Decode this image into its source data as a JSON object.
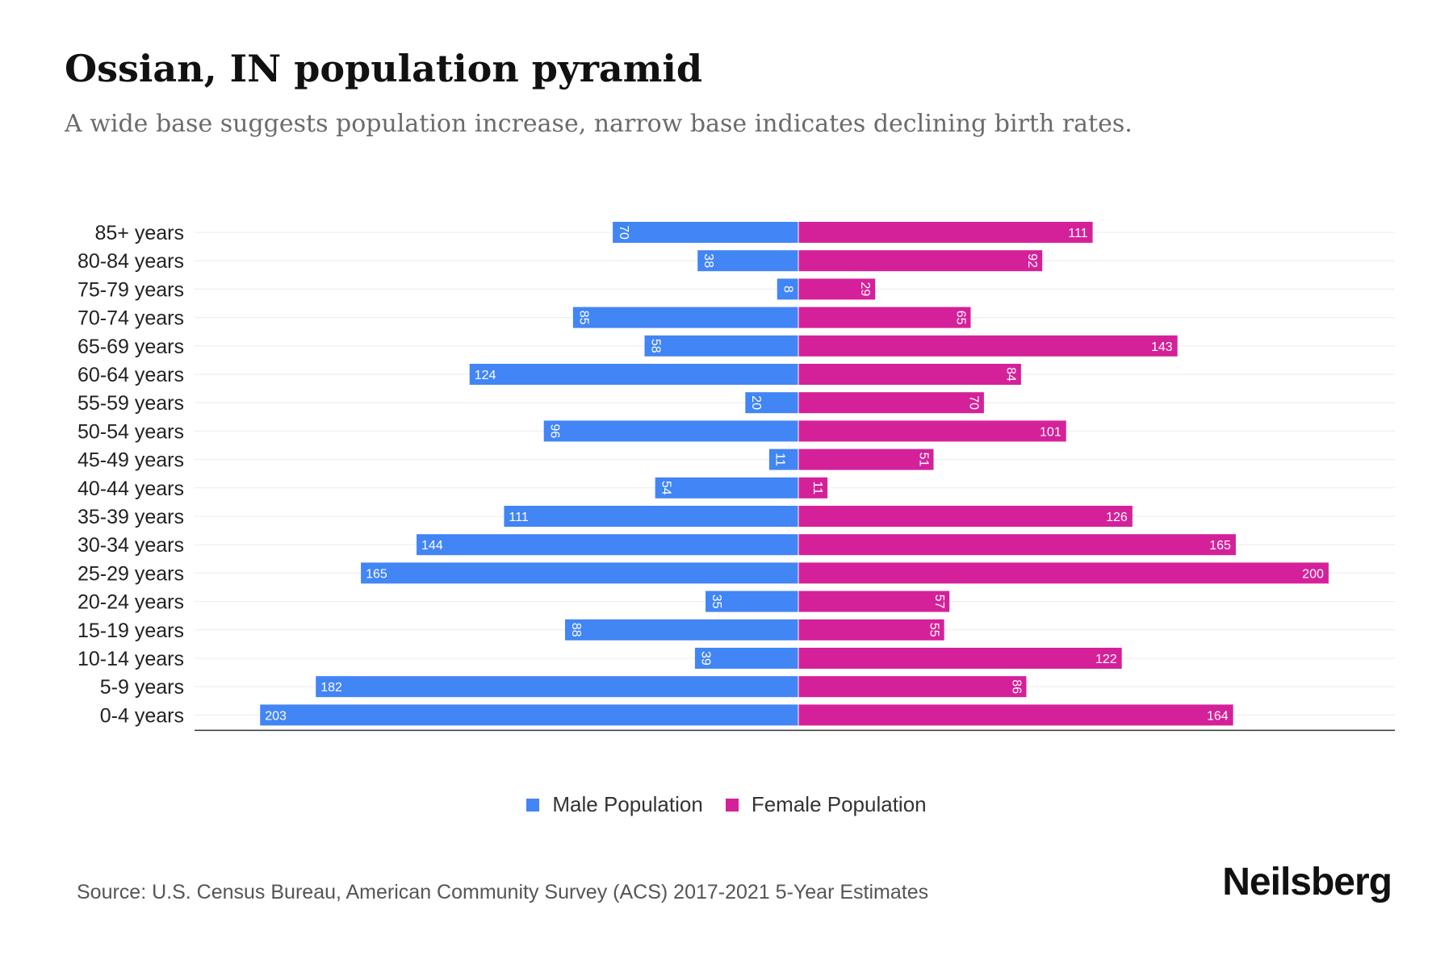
{
  "header": {
    "title": "Ossian, IN population pyramid",
    "subtitle": "A wide base suggests population increase, narrow base indicates declining birth rates."
  },
  "chart_data": {
    "type": "bar",
    "orientation": "horizontal-pyramid",
    "categories": [
      "85+ years",
      "80-84 years",
      "75-79 years",
      "70-74 years",
      "65-69 years",
      "60-64 years",
      "55-59 years",
      "50-54 years",
      "45-49 years",
      "40-44 years",
      "35-39 years",
      "30-34 years",
      "25-29 years",
      "20-24 years",
      "15-19 years",
      "10-14 years",
      "5-9 years",
      "0-4 years"
    ],
    "series": [
      {
        "name": "Male Population",
        "color": "#4285f4",
        "values": [
          70,
          38,
          8,
          85,
          58,
          124,
          20,
          96,
          11,
          54,
          111,
          144,
          165,
          35,
          88,
          39,
          182,
          203
        ]
      },
      {
        "name": "Female Population",
        "color": "#d4219a",
        "values": [
          111,
          92,
          29,
          65,
          143,
          84,
          70,
          101,
          51,
          11,
          126,
          165,
          200,
          57,
          55,
          122,
          86,
          164
        ]
      }
    ],
    "xlim": [
      -225,
      225
    ],
    "grid": true,
    "legend": "bottom-center"
  },
  "legend": {
    "male_label": "Male Population",
    "female_label": "Female Population",
    "male_color": "#4285f4",
    "female_color": "#d4219a"
  },
  "footer": {
    "source": "Source: U.S. Census Bureau, American Community Survey (ACS) 2017-2021 5-Year Estimates",
    "brand": "Neilsberg"
  }
}
